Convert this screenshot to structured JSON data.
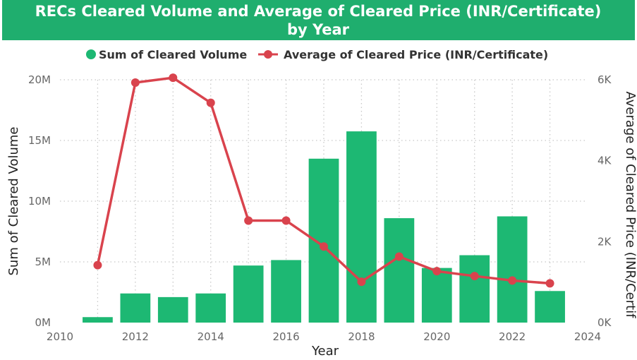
{
  "title": "RECs Cleared Volume and Average of Cleared Price (INR/Certificate) by Year",
  "title_lines": [
    "RECs Cleared Volume and Average of Cleared Price (INR/Certificate)",
    "by Year"
  ],
  "colors": {
    "header_bg": "#1fae6e",
    "bar": "#1db873",
    "line": "#d9434d",
    "grid": "#c8c8c8",
    "text": "#333333"
  },
  "chart_data": {
    "type": "bar",
    "title": "RECs Cleared Volume and Average of Cleared Price (INR/Certificate) by Year",
    "xlabel": "Year",
    "ylabel": "Sum of Cleared Volume",
    "y2label": "Average of Cleared Price (INR/Certif",
    "xlim": [
      2010,
      2024
    ],
    "x_ticks": [
      2010,
      2012,
      2014,
      2016,
      2018,
      2020,
      2022,
      2024
    ],
    "ylim": [
      0,
      20000000
    ],
    "y_ticks": [
      0,
      5000000,
      10000000,
      15000000,
      20000000
    ],
    "y_tick_labels": [
      "0M",
      "5M",
      "10M",
      "15M",
      "20M"
    ],
    "y2lim": [
      0,
      6000
    ],
    "y2_ticks": [
      0,
      2000,
      4000,
      6000
    ],
    "y2_tick_labels": [
      "0K",
      "2K",
      "4K",
      "6K"
    ],
    "grid": true,
    "legend": "top-center",
    "x": [
      2011,
      2012,
      2013,
      2014,
      2015,
      2016,
      2017,
      2018,
      2019,
      2020,
      2021,
      2022,
      2023
    ],
    "series": [
      {
        "name": "Sum of Cleared Volume",
        "kind": "bar",
        "axis": "left",
        "values": [
          450000,
          2400000,
          2100000,
          2400000,
          4700000,
          5150000,
          13500000,
          15750000,
          8600000,
          4500000,
          5550000,
          8750000,
          2600000
        ]
      },
      {
        "name": "Average of Cleared Price (INR/Certificate)",
        "kind": "line",
        "axis": "right",
        "values": [
          1420,
          5930,
          6050,
          5430,
          2520,
          2520,
          1880,
          1010,
          1630,
          1270,
          1150,
          1040,
          970
        ]
      }
    ]
  }
}
